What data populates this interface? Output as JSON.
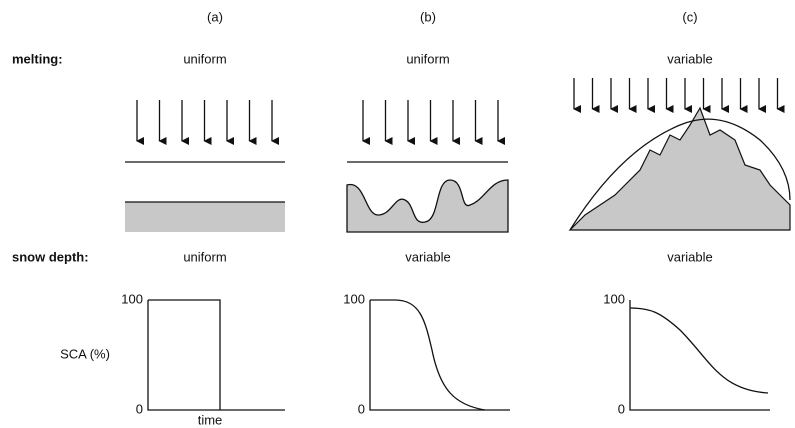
{
  "row_labels": {
    "melting": "melting:",
    "snow_depth": "snow depth:"
  },
  "panels": [
    {
      "label": "(a)",
      "melting": "uniform",
      "snow_depth": "uniform",
      "y_max": "100",
      "y_min": "0"
    },
    {
      "label": "(b)",
      "melting": "uniform",
      "snow_depth": "variable",
      "y_max": "100",
      "y_min": "0"
    },
    {
      "label": "(c)",
      "melting": "variable",
      "snow_depth": "variable",
      "y_max": "100",
      "y_min": "0"
    }
  ],
  "y_axis_label": "SCA (%)",
  "x_axis_label": "time"
}
